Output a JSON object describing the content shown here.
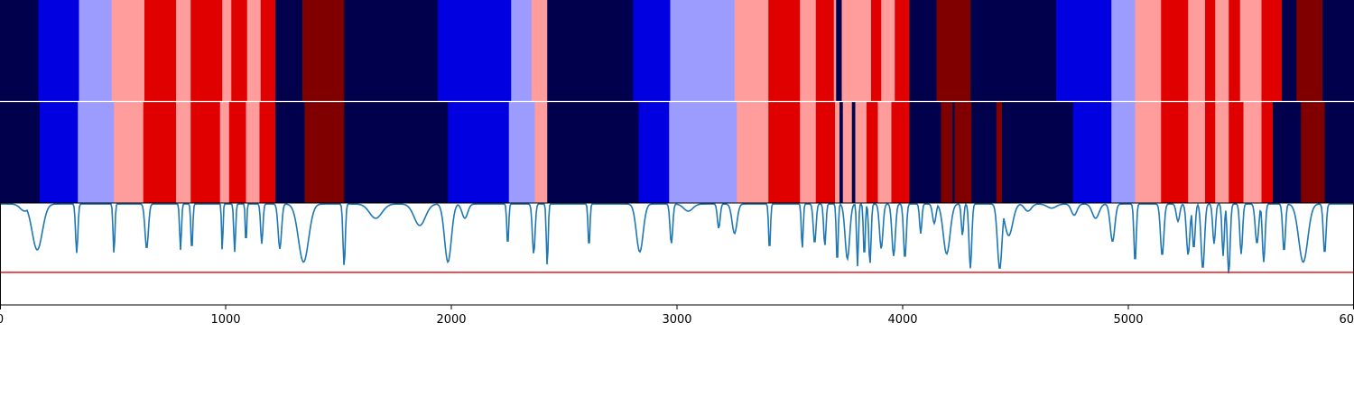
{
  "chart_data": {
    "type": "heatmap",
    "x_range": [
      0,
      6000
    ],
    "x_ticks": [
      0,
      1000,
      2000,
      3000,
      4000,
      5000,
      6000
    ],
    "x_tick_labels": [
      "0",
      "1000",
      "2000",
      "3000",
      "4000",
      "5000",
      "6000"
    ],
    "state_colors": {
      "0": "#00004c",
      "1": "#0000e0",
      "2": "#9c9cff",
      "3": "#ff9c9c",
      "4": "#e00000",
      "5": "#800000"
    },
    "rows": [
      {
        "segments": [
          [
            0,
            170,
            0
          ],
          [
            170,
            350,
            1
          ],
          [
            350,
            495,
            2
          ],
          [
            495,
            640,
            3
          ],
          [
            640,
            780,
            4
          ],
          [
            780,
            845,
            3
          ],
          [
            845,
            985,
            4
          ],
          [
            985,
            1025,
            3
          ],
          [
            1025,
            1095,
            4
          ],
          [
            1095,
            1155,
            3
          ],
          [
            1155,
            1220,
            4
          ],
          [
            1220,
            1340,
            0
          ],
          [
            1340,
            1525,
            5
          ],
          [
            1525,
            1940,
            0
          ],
          [
            1940,
            2265,
            1
          ],
          [
            2265,
            2355,
            2
          ],
          [
            2355,
            2425,
            3
          ],
          [
            2425,
            2805,
            0
          ],
          [
            2805,
            2970,
            1
          ],
          [
            2970,
            3255,
            2
          ],
          [
            3255,
            3405,
            3
          ],
          [
            3405,
            3545,
            4
          ],
          [
            3545,
            3615,
            3
          ],
          [
            3615,
            3695,
            4
          ],
          [
            3695,
            3705,
            3
          ],
          [
            3705,
            3730,
            0
          ],
          [
            3730,
            3745,
            3
          ],
          [
            3745,
            3860,
            3
          ],
          [
            3860,
            3905,
            4
          ],
          [
            3905,
            3965,
            3
          ],
          [
            3965,
            4030,
            4
          ],
          [
            4030,
            4150,
            0
          ],
          [
            4150,
            4300,
            5
          ],
          [
            4300,
            4680,
            0
          ],
          [
            4680,
            4925,
            1
          ],
          [
            4925,
            5030,
            2
          ],
          [
            5030,
            5145,
            3
          ],
          [
            5145,
            5265,
            4
          ],
          [
            5265,
            5340,
            3
          ],
          [
            5340,
            5385,
            4
          ],
          [
            5385,
            5445,
            3
          ],
          [
            5445,
            5495,
            4
          ],
          [
            5495,
            5590,
            3
          ],
          [
            5590,
            5680,
            4
          ],
          [
            5680,
            5745,
            0
          ],
          [
            5745,
            5860,
            5
          ],
          [
            5860,
            6000,
            0
          ]
        ]
      },
      {
        "segments": [
          [
            0,
            175,
            0
          ],
          [
            175,
            345,
            1
          ],
          [
            345,
            505,
            2
          ],
          [
            505,
            635,
            3
          ],
          [
            635,
            780,
            4
          ],
          [
            780,
            845,
            3
          ],
          [
            845,
            975,
            4
          ],
          [
            975,
            1015,
            3
          ],
          [
            1015,
            1090,
            4
          ],
          [
            1090,
            1150,
            3
          ],
          [
            1150,
            1220,
            4
          ],
          [
            1220,
            1350,
            0
          ],
          [
            1350,
            1525,
            5
          ],
          [
            1525,
            1985,
            0
          ],
          [
            1985,
            2255,
            1
          ],
          [
            2255,
            2370,
            2
          ],
          [
            2370,
            2425,
            3
          ],
          [
            2425,
            2830,
            0
          ],
          [
            2830,
            2965,
            1
          ],
          [
            2965,
            3265,
            2
          ],
          [
            3265,
            3405,
            3
          ],
          [
            3405,
            3545,
            4
          ],
          [
            3545,
            3615,
            3
          ],
          [
            3615,
            3700,
            4
          ],
          [
            3700,
            3720,
            3
          ],
          [
            3720,
            3735,
            0
          ],
          [
            3735,
            3775,
            3
          ],
          [
            3775,
            3790,
            0
          ],
          [
            3790,
            3840,
            3
          ],
          [
            3840,
            3890,
            4
          ],
          [
            3890,
            3950,
            3
          ],
          [
            3950,
            4030,
            4
          ],
          [
            4030,
            4170,
            0
          ],
          [
            4170,
            4220,
            5
          ],
          [
            4220,
            4230,
            0
          ],
          [
            4230,
            4305,
            5
          ],
          [
            4305,
            4415,
            0
          ],
          [
            4415,
            4440,
            5
          ],
          [
            4440,
            4755,
            0
          ],
          [
            4755,
            4925,
            1
          ],
          [
            4925,
            5030,
            2
          ],
          [
            5030,
            5145,
            3
          ],
          [
            5145,
            5265,
            4
          ],
          [
            5265,
            5340,
            3
          ],
          [
            5340,
            5385,
            4
          ],
          [
            5385,
            5445,
            3
          ],
          [
            5445,
            5510,
            4
          ],
          [
            5510,
            5590,
            3
          ],
          [
            5590,
            5640,
            4
          ],
          [
            5640,
            5765,
            0
          ],
          [
            5765,
            5870,
            5
          ],
          [
            5870,
            6000,
            0
          ]
        ]
      }
    ],
    "line_series": {
      "color": "#1f77b4",
      "threshold_color": "#e41a1c",
      "y_range": [
        0,
        1
      ],
      "threshold": 0.32,
      "baseline": 0.99,
      "dips": [
        [
          110,
          40,
          0.92
        ],
        [
          165,
          45,
          0.54
        ],
        [
          340,
          10,
          0.51
        ],
        [
          505,
          8,
          0.5
        ],
        [
          650,
          15,
          0.55
        ],
        [
          800,
          8,
          0.54
        ],
        [
          850,
          8,
          0.53
        ],
        [
          985,
          6,
          0.52
        ],
        [
          1040,
          8,
          0.52
        ],
        [
          1090,
          6,
          0.58
        ],
        [
          1160,
          10,
          0.6
        ],
        [
          1240,
          15,
          0.55
        ],
        [
          1345,
          45,
          0.42
        ],
        [
          1525,
          10,
          0.38
        ],
        [
          1665,
          55,
          0.85
        ],
        [
          1860,
          50,
          0.78
        ],
        [
          1985,
          30,
          0.42
        ],
        [
          2060,
          25,
          0.85
        ],
        [
          2250,
          8,
          0.58
        ],
        [
          2365,
          12,
          0.5
        ],
        [
          2425,
          8,
          0.38
        ],
        [
          2610,
          8,
          0.56
        ],
        [
          2835,
          30,
          0.52
        ],
        [
          2975,
          12,
          0.6
        ],
        [
          3050,
          40,
          0.92
        ],
        [
          3185,
          12,
          0.75
        ],
        [
          3255,
          22,
          0.7
        ],
        [
          3410,
          8,
          0.53
        ],
        [
          3555,
          8,
          0.55
        ],
        [
          3610,
          12,
          0.6
        ],
        [
          3655,
          10,
          0.58
        ],
        [
          3710,
          8,
          0.4
        ],
        [
          3755,
          20,
          0.45
        ],
        [
          3800,
          8,
          0.38
        ],
        [
          3830,
          8,
          0.46
        ],
        [
          3855,
          10,
          0.4
        ],
        [
          3905,
          15,
          0.55
        ],
        [
          3960,
          15,
          0.48
        ],
        [
          4010,
          12,
          0.45
        ],
        [
          4080,
          10,
          0.7
        ],
        [
          4140,
          15,
          0.8
        ],
        [
          4195,
          30,
          0.5
        ],
        [
          4265,
          10,
          0.68
        ],
        [
          4300,
          12,
          0.36
        ],
        [
          4430,
          20,
          0.35
        ],
        [
          4470,
          35,
          0.68
        ],
        [
          4555,
          30,
          0.92
        ],
        [
          4660,
          40,
          0.95
        ],
        [
          4760,
          25,
          0.88
        ],
        [
          4855,
          30,
          0.85
        ],
        [
          4930,
          20,
          0.62
        ],
        [
          5030,
          10,
          0.41
        ],
        [
          5150,
          15,
          0.48
        ],
        [
          5220,
          15,
          0.82
        ],
        [
          5265,
          15,
          0.49
        ],
        [
          5290,
          12,
          0.55
        ],
        [
          5330,
          15,
          0.35
        ],
        [
          5380,
          12,
          0.6
        ],
        [
          5420,
          10,
          0.48
        ],
        [
          5445,
          12,
          0.3
        ],
        [
          5500,
          12,
          0.5
        ],
        [
          5570,
          15,
          0.6
        ],
        [
          5600,
          12,
          0.42
        ],
        [
          5690,
          12,
          0.52
        ],
        [
          5775,
          40,
          0.42
        ],
        [
          5870,
          12,
          0.5
        ]
      ]
    }
  }
}
